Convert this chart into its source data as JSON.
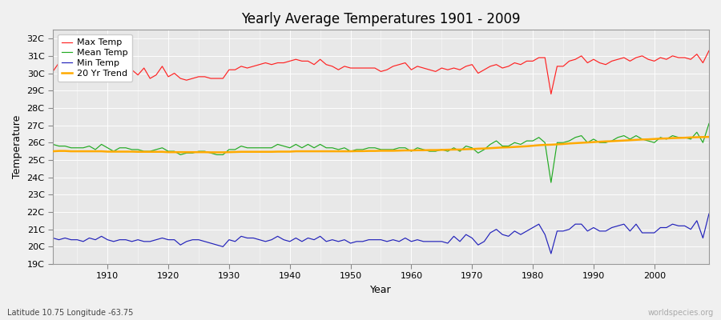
{
  "title": "Yearly Average Temperatures 1901 - 2009",
  "xlabel": "Year",
  "ylabel": "Temperature",
  "footnote_left": "Latitude 10.75 Longitude -63.75",
  "footnote_right": "worldspecies.org",
  "ylim": [
    19,
    32.5
  ],
  "yticks": [
    19,
    20,
    21,
    22,
    23,
    24,
    25,
    26,
    27,
    28,
    29,
    30,
    31,
    32
  ],
  "ytick_labels": [
    "19C",
    "20C",
    "21C",
    "22C",
    "23C",
    "24C",
    "25C",
    "26C",
    "27C",
    "28C",
    "29C",
    "30C",
    "31C",
    "32C"
  ],
  "xlim": [
    1901,
    2009
  ],
  "xticks": [
    1910,
    1920,
    1930,
    1940,
    1950,
    1960,
    1970,
    1980,
    1990,
    2000
  ],
  "fig_background_color": "#f0f0f0",
  "plot_bg_color": "#e8e8e8",
  "grid_color": "#ffffff",
  "line_colors": {
    "max": "#ff2222",
    "mean": "#22aa22",
    "min": "#2222bb",
    "trend": "#ffaa00"
  },
  "legend_labels": [
    "Max Temp",
    "Mean Temp",
    "Min Temp",
    "20 Yr Trend"
  ],
  "years": [
    1901,
    1902,
    1903,
    1904,
    1905,
    1906,
    1907,
    1908,
    1909,
    1910,
    1911,
    1912,
    1913,
    1914,
    1915,
    1916,
    1917,
    1918,
    1919,
    1920,
    1921,
    1922,
    1923,
    1924,
    1925,
    1926,
    1927,
    1928,
    1929,
    1930,
    1931,
    1932,
    1933,
    1934,
    1935,
    1936,
    1937,
    1938,
    1939,
    1940,
    1941,
    1942,
    1943,
    1944,
    1945,
    1946,
    1947,
    1948,
    1949,
    1950,
    1951,
    1952,
    1953,
    1954,
    1955,
    1956,
    1957,
    1958,
    1959,
    1960,
    1961,
    1962,
    1963,
    1964,
    1965,
    1966,
    1967,
    1968,
    1969,
    1970,
    1971,
    1972,
    1973,
    1974,
    1975,
    1976,
    1977,
    1978,
    1979,
    1980,
    1981,
    1982,
    1983,
    1984,
    1985,
    1986,
    1987,
    1988,
    1989,
    1990,
    1991,
    1992,
    1993,
    1994,
    1995,
    1996,
    1997,
    1998,
    1999,
    2000,
    2001,
    2002,
    2003,
    2004,
    2005,
    2006,
    2007,
    2008,
    2009
  ],
  "max_temp": [
    30.1,
    30.6,
    30.3,
    30.1,
    30.2,
    30.5,
    30.7,
    30.3,
    30.5,
    30.2,
    30.0,
    30.2,
    30.6,
    30.2,
    29.9,
    30.3,
    29.7,
    29.9,
    30.4,
    29.8,
    30.0,
    29.7,
    29.6,
    29.7,
    29.8,
    29.8,
    29.7,
    29.7,
    29.7,
    30.2,
    30.2,
    30.4,
    30.3,
    30.4,
    30.5,
    30.6,
    30.5,
    30.6,
    30.6,
    30.7,
    30.8,
    30.7,
    30.7,
    30.5,
    30.8,
    30.5,
    30.4,
    30.2,
    30.4,
    30.3,
    30.3,
    30.3,
    30.3,
    30.3,
    30.1,
    30.2,
    30.4,
    30.5,
    30.6,
    30.2,
    30.4,
    30.3,
    30.2,
    30.1,
    30.3,
    30.2,
    30.3,
    30.2,
    30.4,
    30.5,
    30.0,
    30.2,
    30.4,
    30.5,
    30.3,
    30.4,
    30.6,
    30.5,
    30.7,
    30.7,
    30.9,
    30.9,
    28.8,
    30.4,
    30.4,
    30.7,
    30.8,
    31.0,
    30.6,
    30.8,
    30.6,
    30.5,
    30.7,
    30.8,
    30.9,
    30.7,
    30.9,
    31.0,
    30.8,
    30.7,
    30.9,
    30.8,
    31.0,
    30.9,
    30.9,
    30.8,
    31.1,
    30.6,
    31.3
  ],
  "mean_temp": [
    25.9,
    25.8,
    25.8,
    25.7,
    25.7,
    25.7,
    25.8,
    25.6,
    25.9,
    25.7,
    25.5,
    25.7,
    25.7,
    25.6,
    25.6,
    25.5,
    25.5,
    25.6,
    25.7,
    25.5,
    25.5,
    25.3,
    25.4,
    25.4,
    25.5,
    25.5,
    25.4,
    25.3,
    25.3,
    25.6,
    25.6,
    25.8,
    25.7,
    25.7,
    25.7,
    25.7,
    25.7,
    25.9,
    25.8,
    25.7,
    25.9,
    25.7,
    25.9,
    25.7,
    25.9,
    25.7,
    25.7,
    25.6,
    25.7,
    25.5,
    25.6,
    25.6,
    25.7,
    25.7,
    25.6,
    25.6,
    25.6,
    25.7,
    25.7,
    25.5,
    25.7,
    25.6,
    25.5,
    25.5,
    25.6,
    25.5,
    25.7,
    25.5,
    25.8,
    25.7,
    25.4,
    25.6,
    25.9,
    26.1,
    25.8,
    25.8,
    26.0,
    25.9,
    26.1,
    26.1,
    26.3,
    26.0,
    23.7,
    26.0,
    26.0,
    26.1,
    26.3,
    26.4,
    26.0,
    26.2,
    26.0,
    26.0,
    26.1,
    26.3,
    26.4,
    26.2,
    26.4,
    26.2,
    26.1,
    26.0,
    26.3,
    26.2,
    26.4,
    26.3,
    26.3,
    26.2,
    26.6,
    26.0,
    27.1
  ],
  "min_temp": [
    20.5,
    20.4,
    20.5,
    20.4,
    20.4,
    20.3,
    20.5,
    20.4,
    20.6,
    20.4,
    20.3,
    20.4,
    20.4,
    20.3,
    20.4,
    20.3,
    20.3,
    20.4,
    20.5,
    20.4,
    20.4,
    20.1,
    20.3,
    20.4,
    20.4,
    20.3,
    20.2,
    20.1,
    20.0,
    20.4,
    20.3,
    20.6,
    20.5,
    20.5,
    20.4,
    20.3,
    20.4,
    20.6,
    20.4,
    20.3,
    20.5,
    20.3,
    20.5,
    20.4,
    20.6,
    20.3,
    20.4,
    20.3,
    20.4,
    20.2,
    20.3,
    20.3,
    20.4,
    20.4,
    20.4,
    20.3,
    20.4,
    20.3,
    20.5,
    20.3,
    20.4,
    20.3,
    20.3,
    20.3,
    20.3,
    20.2,
    20.6,
    20.3,
    20.7,
    20.5,
    20.1,
    20.3,
    20.8,
    21.0,
    20.7,
    20.6,
    20.9,
    20.7,
    20.9,
    21.1,
    21.3,
    20.7,
    19.6,
    20.9,
    20.9,
    21.0,
    21.3,
    21.3,
    20.9,
    21.1,
    20.9,
    20.9,
    21.1,
    21.2,
    21.3,
    20.9,
    21.3,
    20.8,
    20.8,
    20.8,
    21.1,
    21.1,
    21.3,
    21.2,
    21.2,
    21.0,
    21.5,
    20.5,
    21.9
  ],
  "trend_years": [
    1901,
    1902,
    1903,
    1904,
    1905,
    1906,
    1907,
    1908,
    1909,
    1910,
    1911,
    1912,
    1913,
    1914,
    1915,
    1916,
    1917,
    1918,
    1919,
    1920,
    1921,
    1922,
    1923,
    1924,
    1925,
    1926,
    1927,
    1928,
    1929,
    1930,
    1931,
    1932,
    1933,
    1934,
    1935,
    1936,
    1937,
    1938,
    1939,
    1940,
    1941,
    1942,
    1943,
    1944,
    1945,
    1946,
    1947,
    1948,
    1949,
    1950,
    1951,
    1952,
    1953,
    1954,
    1955,
    1956,
    1957,
    1958,
    1959,
    1960,
    1961,
    1962,
    1963,
    1964,
    1965,
    1966,
    1967,
    1968,
    1969,
    1970,
    1971,
    1972,
    1973,
    1974,
    1975,
    1976,
    1977,
    1978,
    1979,
    1980,
    1981,
    1982,
    1983,
    1984,
    1985,
    1986,
    1987,
    1988,
    1989,
    1990,
    1991,
    1992,
    1993,
    1994,
    1995,
    1996,
    1997,
    1998,
    1999,
    2000,
    2001,
    2002,
    2003,
    2004,
    2005,
    2006,
    2007,
    2008,
    2009
  ],
  "trend": [
    25.5,
    25.52,
    25.52,
    25.5,
    25.5,
    25.5,
    25.5,
    25.5,
    25.5,
    25.48,
    25.48,
    25.48,
    25.48,
    25.48,
    25.47,
    25.47,
    25.47,
    25.47,
    25.47,
    25.45,
    25.45,
    25.45,
    25.45,
    25.45,
    25.45,
    25.45,
    25.44,
    25.44,
    25.44,
    25.45,
    25.46,
    25.47,
    25.47,
    25.47,
    25.47,
    25.47,
    25.47,
    25.48,
    25.48,
    25.48,
    25.5,
    25.5,
    25.5,
    25.5,
    25.5,
    25.5,
    25.5,
    25.5,
    25.5,
    25.5,
    25.51,
    25.51,
    25.52,
    25.52,
    25.53,
    25.53,
    25.53,
    25.54,
    25.55,
    25.55,
    25.56,
    25.56,
    25.57,
    25.57,
    25.58,
    25.59,
    25.6,
    25.6,
    25.62,
    25.63,
    25.65,
    25.66,
    25.68,
    25.7,
    25.72,
    25.73,
    25.75,
    25.77,
    25.79,
    25.82,
    25.85,
    25.87,
    25.88,
    25.9,
    25.92,
    25.95,
    25.97,
    25.99,
    26.01,
    26.03,
    26.05,
    26.07,
    26.08,
    26.1,
    26.12,
    26.14,
    26.16,
    26.18,
    26.19,
    26.21,
    26.23,
    26.24,
    26.26,
    26.27,
    26.28,
    26.3,
    26.31,
    26.32,
    26.33
  ]
}
